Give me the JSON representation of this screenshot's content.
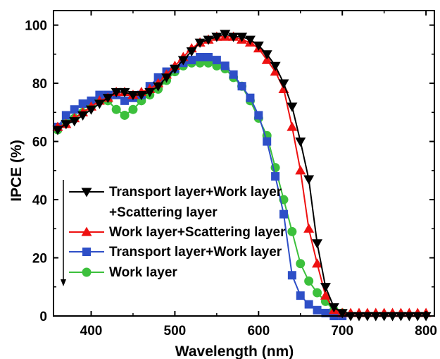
{
  "chart_data": {
    "type": "line",
    "xlabel": "Wavelength (nm)",
    "ylabel": "IPCE (%)",
    "xlim": [
      355,
      810
    ],
    "ylim": [
      0,
      105
    ],
    "xticks": [
      400,
      500,
      600,
      700,
      800
    ],
    "yticks": [
      0,
      20,
      40,
      60,
      80,
      100
    ],
    "grid": false,
    "legend_position": "left-center",
    "series": [
      {
        "name": "Transport layer+Work layer",
        "name_line2": "+Scattering layer",
        "color": "#000000",
        "marker": "triangle-down",
        "x": [
          360,
          370,
          380,
          390,
          400,
          410,
          420,
          430,
          440,
          450,
          460,
          470,
          480,
          490,
          500,
          510,
          520,
          530,
          540,
          550,
          560,
          570,
          580,
          590,
          600,
          610,
          620,
          630,
          640,
          650,
          660,
          670,
          680,
          690,
          700,
          710,
          720,
          730,
          740,
          750,
          760,
          770,
          780,
          790,
          800
        ],
        "y": [
          64,
          66,
          67,
          69,
          71,
          73,
          75,
          77,
          77,
          76,
          76,
          77,
          79,
          82,
          85,
          88,
          91,
          94,
          95,
          96,
          97,
          96,
          96,
          95,
          93,
          90,
          86,
          80,
          72,
          60,
          47,
          25,
          10,
          3,
          1,
          0,
          0,
          0,
          0,
          0,
          0,
          0,
          0,
          0,
          0
        ]
      },
      {
        "name": "Work layer+Scattering layer",
        "color": "#ee1111",
        "marker": "triangle-up",
        "x": [
          360,
          370,
          380,
          390,
          400,
          410,
          420,
          430,
          440,
          450,
          460,
          470,
          480,
          490,
          500,
          510,
          520,
          530,
          540,
          550,
          560,
          570,
          580,
          590,
          600,
          610,
          620,
          630,
          640,
          650,
          660,
          670,
          680,
          690,
          700,
          710,
          720,
          730,
          740,
          750,
          760,
          770,
          780,
          790,
          800
        ],
        "y": [
          65,
          66,
          68,
          70,
          72,
          74,
          75,
          77,
          77,
          76,
          77,
          78,
          80,
          83,
          86,
          89,
          92,
          94,
          95,
          96,
          96,
          96,
          95,
          94,
          92,
          88,
          84,
          78,
          65,
          50,
          30,
          18,
          7,
          2,
          1,
          1,
          1,
          1,
          1,
          1,
          1,
          1,
          1,
          1,
          1
        ]
      },
      {
        "name": "Transport layer+Work layer",
        "color": "#2e4fc7",
        "marker": "square",
        "x": [
          360,
          370,
          380,
          390,
          400,
          410,
          420,
          430,
          440,
          450,
          460,
          470,
          480,
          490,
          500,
          510,
          520,
          530,
          540,
          550,
          560,
          570,
          580,
          590,
          600,
          610,
          620,
          630,
          640,
          650,
          660,
          670,
          680,
          690,
          700
        ],
        "y": [
          65,
          69,
          71,
          73,
          74,
          76,
          76,
          76,
          74,
          75,
          76,
          79,
          82,
          84,
          85,
          87,
          88,
          89,
          89,
          88,
          86,
          83,
          79,
          75,
          69,
          60,
          48,
          35,
          14,
          7,
          4,
          2,
          1,
          0,
          0
        ]
      },
      {
        "name": "Work layer",
        "color": "#3cc03c",
        "marker": "circle",
        "x": [
          360,
          370,
          380,
          390,
          400,
          410,
          420,
          430,
          440,
          450,
          460,
          470,
          480,
          490,
          500,
          510,
          520,
          530,
          540,
          550,
          560,
          570,
          580,
          590,
          600,
          610,
          620,
          630,
          640,
          650,
          660,
          670,
          680,
          690,
          700
        ],
        "y": [
          64,
          67,
          68,
          70,
          72,
          74,
          74,
          71,
          69,
          71,
          74,
          76,
          78,
          81,
          84,
          86,
          87,
          87,
          87,
          86,
          85,
          82,
          79,
          74,
          68,
          62,
          51,
          40,
          29,
          18,
          12,
          8,
          5,
          2,
          1
        ]
      }
    ]
  }
}
